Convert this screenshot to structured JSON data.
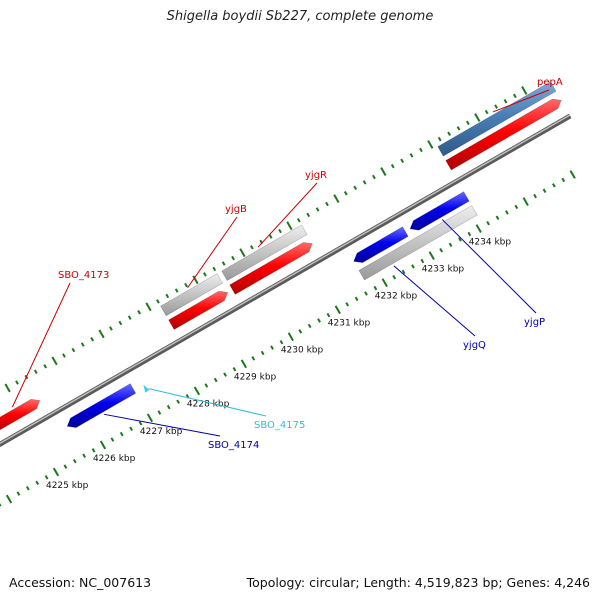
{
  "title": "Shigella boydii Sb227, complete genome",
  "footer": {
    "accession": "Accession: NC_007613",
    "summary": "Topology: circular; Length: 4,519,823 bp; Genes: 4,246"
  },
  "colors": {
    "forward_gene": "#ff0000",
    "reverse_gene": "#0000ee",
    "forward_label": "#cc0000",
    "reverse_label": "#0000aa",
    "pseudo_gene_label": "#33bbdd",
    "grey_feature": "#c8c8c8",
    "steel_feature": "#4a7fb5",
    "tick_color": "#1a7a1a",
    "backbone": "#888888"
  },
  "axis": {
    "ticks": [
      {
        "label": "4225 kbp",
        "kbp": 4225
      },
      {
        "label": "4226 kbp",
        "kbp": 4226
      },
      {
        "label": "4227 kbp",
        "kbp": 4227
      },
      {
        "label": "4228 kbp",
        "kbp": 4228
      },
      {
        "label": "4229 kbp",
        "kbp": 4229
      },
      {
        "label": "4230 kbp",
        "kbp": 4230
      },
      {
        "label": "4231 kbp",
        "kbp": 4231
      },
      {
        "label": "4232 kbp",
        "kbp": 4232
      },
      {
        "label": "4233 kbp",
        "kbp": 4233
      },
      {
        "label": "4234 kbp",
        "kbp": 4234
      }
    ]
  },
  "genes": [
    {
      "name": "SBO_4173",
      "strand": "forward"
    },
    {
      "name": "yjgB",
      "strand": "forward"
    },
    {
      "name": "yjgR",
      "strand": "forward"
    },
    {
      "name": "pepA",
      "strand": "forward"
    },
    {
      "name": "SBO_4174",
      "strand": "reverse"
    },
    {
      "name": "SBO_4175",
      "strand": "reverse-pseudo"
    },
    {
      "name": "yjgQ",
      "strand": "reverse"
    },
    {
      "name": "yjgP",
      "strand": "reverse"
    }
  ]
}
